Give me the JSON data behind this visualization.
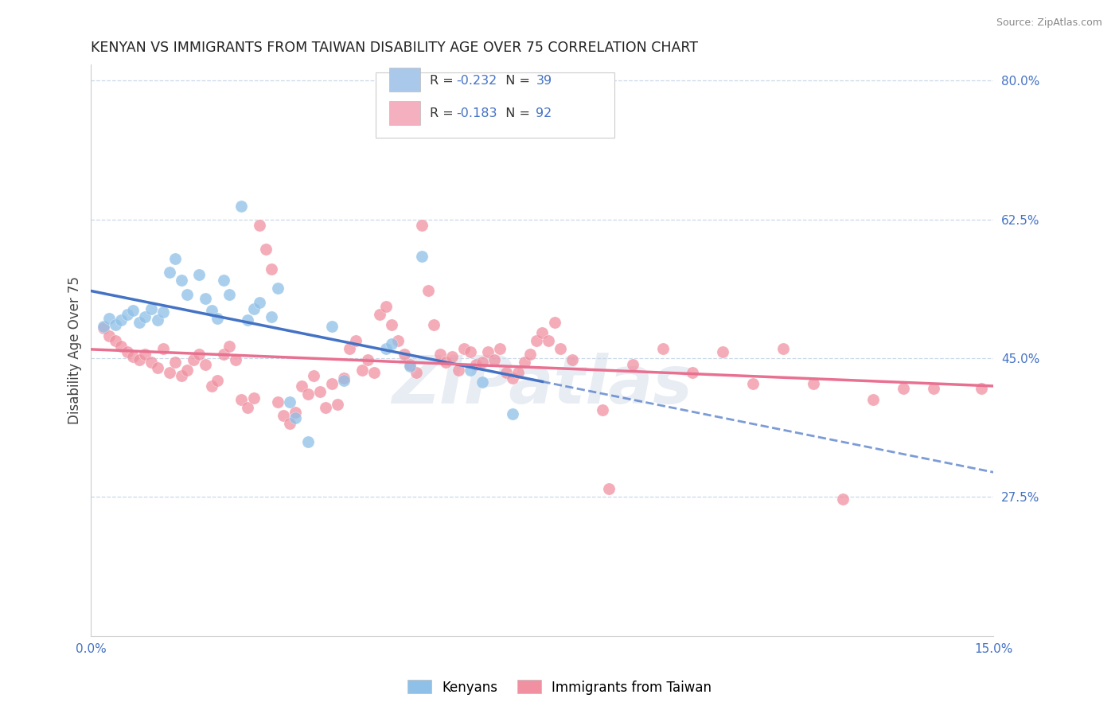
{
  "title": "KENYAN VS IMMIGRANTS FROM TAIWAN DISABILITY AGE OVER 75 CORRELATION CHART",
  "source": "Source: ZipAtlas.com",
  "ylabel": "Disability Age Over 75",
  "x_min": 0.0,
  "x_max": 0.15,
  "y_min": 0.1,
  "y_max": 0.82,
  "x_ticks": [
    0.0,
    0.05,
    0.1,
    0.15
  ],
  "x_tick_labels": [
    "0.0%",
    "",
    "",
    "15.0%"
  ],
  "y_tick_labels_right": [
    "80.0%",
    "62.5%",
    "45.0%",
    "27.5%"
  ],
  "y_tick_positions_right": [
    0.8,
    0.625,
    0.45,
    0.275
  ],
  "legend_entries": [
    {
      "label_pre": "R = ",
      "label_r": "-0.232",
      "label_post": "   N = ",
      "label_n": "39",
      "color": "#aac8ea"
    },
    {
      "label_pre": "R = ",
      "label_r": "-0.183",
      "label_post": "   N = ",
      "label_n": "92",
      "color": "#f4b0be"
    }
  ],
  "legend_label_bottom": [
    "Kenyans",
    "Immigrants from Taiwan"
  ],
  "kenyan_color": "#8ec0e8",
  "taiwan_color": "#f090a0",
  "kenyan_line_color": "#4472c4",
  "taiwan_line_color": "#e87090",
  "watermark": "ZIPatlas",
  "background_color": "#ffffff",
  "grid_color": "#c8d8e8",
  "kenyan_scatter": [
    [
      0.002,
      0.49
    ],
    [
      0.003,
      0.5
    ],
    [
      0.004,
      0.492
    ],
    [
      0.005,
      0.498
    ],
    [
      0.006,
      0.505
    ],
    [
      0.007,
      0.51
    ],
    [
      0.008,
      0.495
    ],
    [
      0.009,
      0.502
    ],
    [
      0.01,
      0.512
    ],
    [
      0.011,
      0.498
    ],
    [
      0.012,
      0.508
    ],
    [
      0.013,
      0.558
    ],
    [
      0.014,
      0.575
    ],
    [
      0.015,
      0.548
    ],
    [
      0.016,
      0.53
    ],
    [
      0.018,
      0.555
    ],
    [
      0.019,
      0.525
    ],
    [
      0.02,
      0.51
    ],
    [
      0.021,
      0.5
    ],
    [
      0.022,
      0.548
    ],
    [
      0.023,
      0.53
    ],
    [
      0.025,
      0.642
    ],
    [
      0.026,
      0.498
    ],
    [
      0.027,
      0.512
    ],
    [
      0.028,
      0.52
    ],
    [
      0.03,
      0.502
    ],
    [
      0.031,
      0.538
    ],
    [
      0.033,
      0.395
    ],
    [
      0.034,
      0.375
    ],
    [
      0.036,
      0.345
    ],
    [
      0.04,
      0.49
    ],
    [
      0.042,
      0.422
    ],
    [
      0.049,
      0.462
    ],
    [
      0.05,
      0.468
    ],
    [
      0.053,
      0.44
    ],
    [
      0.055,
      0.578
    ],
    [
      0.063,
      0.435
    ],
    [
      0.065,
      0.42
    ],
    [
      0.07,
      0.38
    ]
  ],
  "taiwan_scatter": [
    [
      0.002,
      0.488
    ],
    [
      0.003,
      0.478
    ],
    [
      0.004,
      0.472
    ],
    [
      0.005,
      0.465
    ],
    [
      0.006,
      0.458
    ],
    [
      0.007,
      0.452
    ],
    [
      0.008,
      0.448
    ],
    [
      0.009,
      0.455
    ],
    [
      0.01,
      0.445
    ],
    [
      0.011,
      0.438
    ],
    [
      0.012,
      0.462
    ],
    [
      0.013,
      0.432
    ],
    [
      0.014,
      0.445
    ],
    [
      0.015,
      0.428
    ],
    [
      0.016,
      0.435
    ],
    [
      0.017,
      0.448
    ],
    [
      0.018,
      0.455
    ],
    [
      0.019,
      0.442
    ],
    [
      0.02,
      0.415
    ],
    [
      0.021,
      0.422
    ],
    [
      0.022,
      0.455
    ],
    [
      0.023,
      0.465
    ],
    [
      0.024,
      0.448
    ],
    [
      0.025,
      0.398
    ],
    [
      0.026,
      0.388
    ],
    [
      0.027,
      0.4
    ],
    [
      0.028,
      0.618
    ],
    [
      0.029,
      0.588
    ],
    [
      0.03,
      0.562
    ],
    [
      0.031,
      0.395
    ],
    [
      0.032,
      0.378
    ],
    [
      0.033,
      0.368
    ],
    [
      0.034,
      0.382
    ],
    [
      0.035,
      0.415
    ],
    [
      0.036,
      0.405
    ],
    [
      0.037,
      0.428
    ],
    [
      0.038,
      0.408
    ],
    [
      0.039,
      0.388
    ],
    [
      0.04,
      0.418
    ],
    [
      0.041,
      0.392
    ],
    [
      0.042,
      0.425
    ],
    [
      0.043,
      0.462
    ],
    [
      0.044,
      0.472
    ],
    [
      0.045,
      0.435
    ],
    [
      0.046,
      0.448
    ],
    [
      0.047,
      0.432
    ],
    [
      0.048,
      0.505
    ],
    [
      0.049,
      0.515
    ],
    [
      0.05,
      0.492
    ],
    [
      0.051,
      0.472
    ],
    [
      0.052,
      0.455
    ],
    [
      0.053,
      0.442
    ],
    [
      0.054,
      0.432
    ],
    [
      0.055,
      0.618
    ],
    [
      0.056,
      0.535
    ],
    [
      0.057,
      0.492
    ],
    [
      0.058,
      0.455
    ],
    [
      0.059,
      0.445
    ],
    [
      0.06,
      0.452
    ],
    [
      0.061,
      0.435
    ],
    [
      0.062,
      0.462
    ],
    [
      0.063,
      0.458
    ],
    [
      0.064,
      0.442
    ],
    [
      0.065,
      0.445
    ],
    [
      0.066,
      0.458
    ],
    [
      0.067,
      0.448
    ],
    [
      0.068,
      0.462
    ],
    [
      0.069,
      0.432
    ],
    [
      0.07,
      0.425
    ],
    [
      0.071,
      0.432
    ],
    [
      0.072,
      0.445
    ],
    [
      0.073,
      0.455
    ],
    [
      0.074,
      0.472
    ],
    [
      0.075,
      0.482
    ],
    [
      0.076,
      0.472
    ],
    [
      0.077,
      0.495
    ],
    [
      0.078,
      0.462
    ],
    [
      0.08,
      0.448
    ],
    [
      0.085,
      0.385
    ],
    [
      0.086,
      0.285
    ],
    [
      0.09,
      0.442
    ],
    [
      0.095,
      0.462
    ],
    [
      0.1,
      0.432
    ],
    [
      0.105,
      0.458
    ],
    [
      0.11,
      0.418
    ],
    [
      0.115,
      0.462
    ],
    [
      0.12,
      0.418
    ],
    [
      0.125,
      0.272
    ],
    [
      0.13,
      0.398
    ],
    [
      0.135,
      0.412
    ],
    [
      0.14,
      0.412
    ],
    [
      0.148,
      0.412
    ]
  ],
  "kenyan_line_solid_end": 0.075,
  "taiwan_line_solid_end": 0.15
}
